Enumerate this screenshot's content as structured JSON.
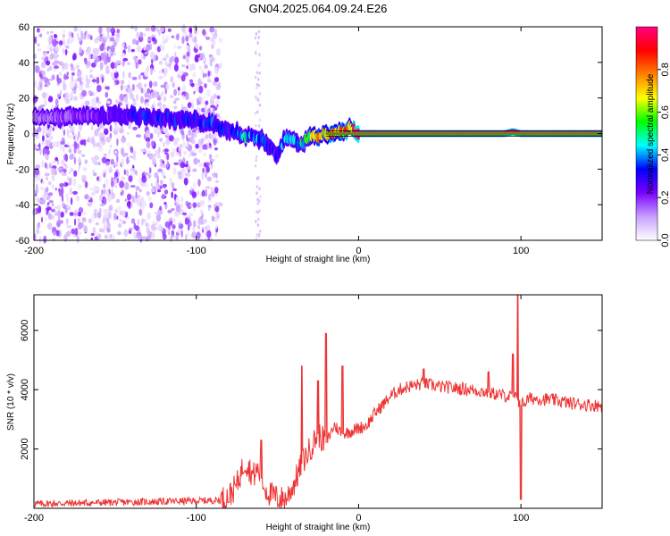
{
  "title": "GN04.2025.064.09.24.E26",
  "chart_data": [
    {
      "type": "heatmap",
      "xlabel": "Height of straight line (km)",
      "ylabel": "Frequency (Hz)",
      "xlim": [
        -200,
        150
      ],
      "ylim": [
        -60,
        60
      ],
      "x_ticks": [
        -200,
        -100,
        0,
        100
      ],
      "y_ticks": [
        -60,
        -40,
        -20,
        0,
        20,
        40,
        60
      ],
      "colorbar": {
        "label": "Normalized spectral amplitude",
        "range": [
          0,
          1
        ],
        "ticks": [
          0.0,
          0.2,
          0.4,
          0.6,
          0.8
        ],
        "colors": [
          "#ffffff",
          "#c8a0ff",
          "#7a00ff",
          "#0000ff",
          "#00ffff",
          "#00ff00",
          "#ffff00",
          "#ff8000",
          "#ff0000",
          "#ff0080"
        ]
      },
      "ridge": {
        "x": [
          -200,
          -160,
          -140,
          -120,
          -100,
          -90,
          -80,
          -70,
          -60,
          -55,
          -50,
          -45,
          -40,
          -35,
          -30,
          -20,
          -10,
          -5,
          0,
          50,
          90,
          95,
          100,
          150
        ],
        "y": [
          9,
          10,
          10,
          9,
          7,
          5,
          2,
          -1,
          -3,
          -8,
          -12,
          -2,
          -4,
          -6,
          -2,
          0,
          1,
          3,
          0,
          0,
          0,
          1,
          0,
          0
        ],
        "amplitude": [
          0.15,
          0.22,
          0.3,
          0.32,
          0.3,
          0.35,
          0.3,
          0.45,
          0.4,
          0.3,
          0.3,
          0.45,
          0.4,
          0.5,
          0.6,
          0.75,
          0.8,
          0.8,
          0.85,
          0.9,
          0.9,
          0.85,
          0.9,
          0.9
        ]
      },
      "noise_region_xlim": [
        -200,
        -85
      ]
    },
    {
      "type": "line",
      "xlabel": "Height of straight line (km)",
      "ylabel": "SNR (10 * v/v)",
      "xlim": [
        -200,
        150
      ],
      "ylim": [
        0,
        7200
      ],
      "x_ticks": [
        -200,
        -100,
        0,
        100
      ],
      "y_ticks": [
        2000,
        4000,
        6000
      ],
      "color": "#ee3333",
      "series": [
        {
          "x": [
            -200,
            -150,
            -100,
            -85,
            -80,
            -75,
            -70,
            -65,
            -62,
            -58,
            -55,
            -50,
            -45,
            -40,
            -35,
            -30,
            -25,
            -20,
            -15,
            -10,
            -5,
            0,
            5,
            10,
            15,
            20,
            25,
            30,
            40,
            50,
            60,
            70,
            80,
            90,
            95,
            97,
            100,
            102,
            105,
            110,
            120,
            130,
            140,
            150
          ],
          "y": [
            150,
            200,
            250,
            280,
            400,
            800,
            1600,
            1100,
            1300,
            700,
            500,
            350,
            300,
            800,
            1500,
            2000,
            2500,
            2200,
            2800,
            2500,
            2600,
            2700,
            2800,
            3200,
            3500,
            3800,
            4000,
            4100,
            4200,
            4100,
            4050,
            4000,
            3900,
            3800,
            3750,
            3700,
            3500,
            3550,
            3700,
            3700,
            3650,
            3550,
            3500,
            3450
          ]
        }
      ],
      "spikes": [
        {
          "x": -60,
          "y": 2300
        },
        {
          "x": -35,
          "y": 4800
        },
        {
          "x": -25,
          "y": 4300
        },
        {
          "x": -20,
          "y": 5900
        },
        {
          "x": -10,
          "y": 4800
        },
        {
          "x": 40,
          "y": 4700
        },
        {
          "x": 80,
          "y": 4600
        },
        {
          "x": 95,
          "y": 5200
        },
        {
          "x": 98,
          "y": 7200
        },
        {
          "x": 100,
          "y": 300
        }
      ]
    }
  ]
}
